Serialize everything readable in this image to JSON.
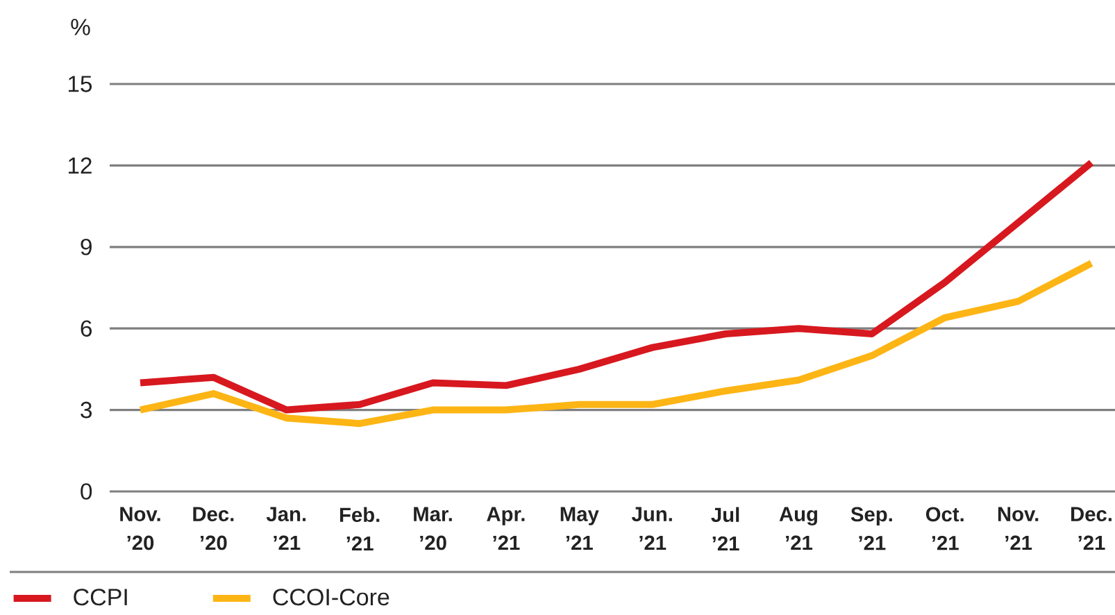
{
  "chart_data": {
    "type": "line",
    "ylabel": "%",
    "categories": [
      "Nov. ’20",
      "Dec. ’20",
      "Jan. ’21",
      "Feb. ’21",
      "Mar. ’20",
      "Apr. ’21",
      "May ’21",
      "Jun. ’21",
      "Jul ’21",
      "Aug ’21",
      "Sep. ’21",
      "Oct. ’21",
      "Nov. ’21",
      "Dec. ’21"
    ],
    "series": [
      {
        "name": "CCPI",
        "color": "#d7181f",
        "values": [
          4.0,
          4.2,
          3.0,
          3.2,
          4.0,
          3.9,
          4.5,
          5.3,
          5.8,
          6.0,
          5.8,
          7.7,
          9.9,
          12.1
        ]
      },
      {
        "name": "CCOI-Core",
        "color": "#fdb515",
        "values": [
          3.0,
          3.6,
          2.7,
          2.5,
          3.0,
          3.0,
          3.2,
          3.2,
          3.7,
          4.1,
          5.0,
          6.4,
          7.0,
          8.4
        ]
      }
    ],
    "ylim": [
      0,
      15
    ],
    "yticks": [
      0,
      3,
      6,
      9,
      12,
      15
    ],
    "grid": "y",
    "legend": "bottom left"
  }
}
